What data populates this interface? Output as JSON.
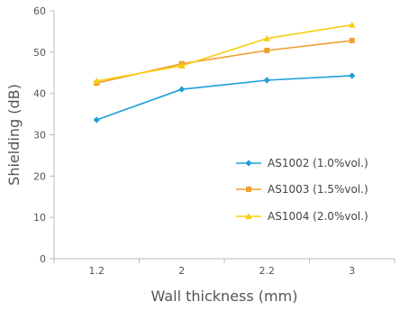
{
  "chart_data": {
    "type": "line",
    "title": "",
    "xlabel": "Wall thickness (mm)",
    "ylabel": "Shielding (dB)",
    "categories": [
      "1.2",
      "2",
      "2.2",
      "3"
    ],
    "ylim": [
      0,
      60
    ],
    "yticks": [
      0,
      10,
      20,
      30,
      40,
      50,
      60
    ],
    "grid": false,
    "legend_position": "bottom-right",
    "series": [
      {
        "name": "AS1002 (1.0%vol.)",
        "color": "#1e9fd8",
        "marker": "diamond",
        "values": [
          33.6,
          41.0,
          43.2,
          44.3
        ]
      },
      {
        "name": "AS1003 (1.5%vol.)",
        "color": "#f0a030",
        "marker": "square",
        "values": [
          42.5,
          47.2,
          50.4,
          52.8
        ]
      },
      {
        "name": "AS1004 (2.0%vol.)",
        "color": "#f7cf10",
        "marker": "triangle",
        "values": [
          43.0,
          46.7,
          53.3,
          56.6
        ]
      }
    ]
  }
}
